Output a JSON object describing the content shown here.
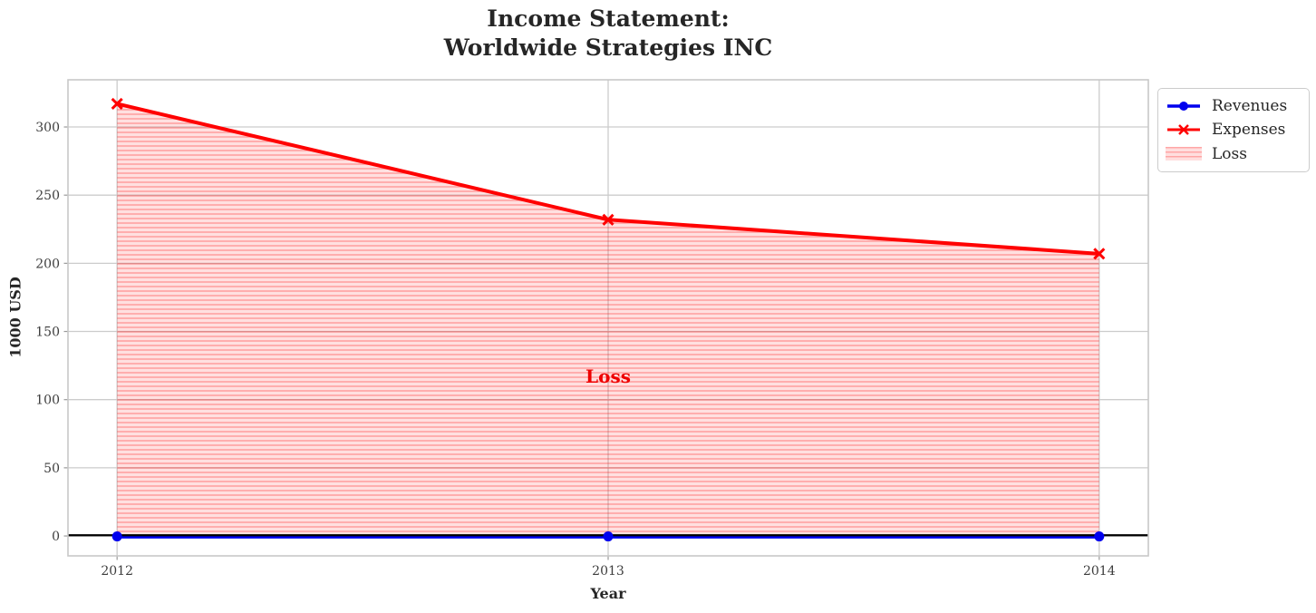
{
  "chart_data": {
    "type": "line",
    "title": "Income Statement:\nWorldwide Strategies INC",
    "xlabel": "Year",
    "ylabel": "1000 USD",
    "x": [
      2012,
      2013,
      2014
    ],
    "series": [
      {
        "name": "Revenues",
        "color": "#0000ee",
        "marker": "circle",
        "values": [
          0,
          0,
          0
        ]
      },
      {
        "name": "Expenses",
        "color": "#ff0000",
        "marker": "x",
        "values": [
          317,
          232,
          207
        ]
      }
    ],
    "fill_between": {
      "label": "Loss",
      "between": [
        "Revenues",
        "Expenses"
      ],
      "fill_color": "rgba(255,0,0,0.12)",
      "hatch": "horizontal",
      "hatch_color": "rgba(255,0,0,0.28)"
    },
    "annotation": {
      "text": "Loss",
      "x": 2013,
      "y": 117,
      "color": "#ee0000"
    },
    "zero_line": {
      "value": 0,
      "color": "#000000"
    },
    "yticks": [
      0,
      50,
      100,
      150,
      200,
      250,
      300
    ],
    "xticks": [
      "2012",
      "2013",
      "2014"
    ],
    "ylim": [
      -14.6,
      334.6
    ],
    "xlim": [
      2011.9,
      2014.1
    ],
    "grid": true,
    "grid_color": "#cccccc",
    "spine_color": "#c8c8c8",
    "tick_label_color": "#3d3d3d",
    "legend": {
      "position": "outside-top-right",
      "entries": [
        "Revenues",
        "Expenses",
        "Loss"
      ]
    }
  }
}
